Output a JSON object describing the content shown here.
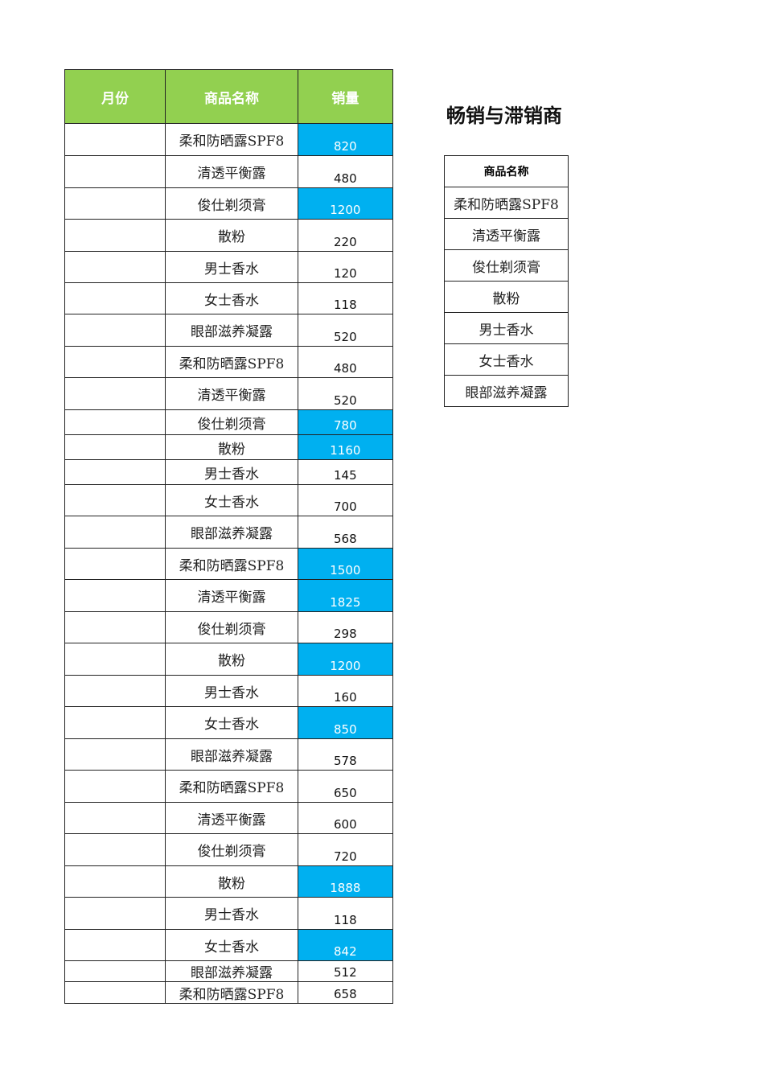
{
  "main_table": {
    "headers": [
      "月份",
      "商品名称",
      "销量"
    ],
    "rows": [
      {
        "month": "",
        "product": "柔和防晒露SPF8",
        "sales": "820",
        "highlight": true
      },
      {
        "month": "",
        "product": "清透平衡露",
        "sales": "480",
        "highlight": false
      },
      {
        "month": "",
        "product": "俊仕剃须膏",
        "sales": "1200",
        "highlight": true
      },
      {
        "month": "",
        "product": "散粉",
        "sales": "220",
        "highlight": false
      },
      {
        "month": "",
        "product": "男士香水",
        "sales": "120",
        "highlight": false
      },
      {
        "month": "",
        "product": "女士香水",
        "sales": "118",
        "highlight": false
      },
      {
        "month": "",
        "product": "眼部滋养凝露",
        "sales": "520",
        "highlight": false
      },
      {
        "month": "",
        "product": "柔和防晒露SPF8",
        "sales": "480",
        "highlight": false
      },
      {
        "month": "",
        "product": "清透平衡露",
        "sales": "520",
        "highlight": false
      },
      {
        "month": "",
        "product": "俊仕剃须膏",
        "sales": "780",
        "highlight": true
      },
      {
        "month": "",
        "product": "散粉",
        "sales": "1160",
        "highlight": true
      },
      {
        "month": "",
        "product": "男士香水",
        "sales": "145",
        "highlight": false
      },
      {
        "month": "",
        "product": "女士香水",
        "sales": "700",
        "highlight": false
      },
      {
        "month": "",
        "product": "眼部滋养凝露",
        "sales": "568",
        "highlight": false
      },
      {
        "month": "",
        "product": "柔和防晒露SPF8",
        "sales": "1500",
        "highlight": true
      },
      {
        "month": "",
        "product": "清透平衡露",
        "sales": "1825",
        "highlight": true
      },
      {
        "month": "",
        "product": "俊仕剃须膏",
        "sales": "298",
        "highlight": false
      },
      {
        "month": "",
        "product": "散粉",
        "sales": "1200",
        "highlight": true
      },
      {
        "month": "",
        "product": "男士香水",
        "sales": "160",
        "highlight": false
      },
      {
        "month": "",
        "product": "女士香水",
        "sales": "850",
        "highlight": true
      },
      {
        "month": "",
        "product": "眼部滋养凝露",
        "sales": "578",
        "highlight": false
      },
      {
        "month": "",
        "product": "柔和防晒露SPF8",
        "sales": "650",
        "highlight": false
      },
      {
        "month": "",
        "product": "清透平衡露",
        "sales": "600",
        "highlight": false
      },
      {
        "month": "",
        "product": "俊仕剃须膏",
        "sales": "720",
        "highlight": false
      },
      {
        "month": "",
        "product": "散粉",
        "sales": "1888",
        "highlight": true
      },
      {
        "month": "",
        "product": "男士香水",
        "sales": "118",
        "highlight": false
      },
      {
        "month": "",
        "product": "女士香水",
        "sales": "842",
        "highlight": true
      },
      {
        "month": "",
        "product": "眼部滋养凝露",
        "sales": "512",
        "highlight": false
      },
      {
        "month": "",
        "product": "柔和防晒露SPF8",
        "sales": "658",
        "highlight": false
      }
    ]
  },
  "side": {
    "title": "畅销与滞销商",
    "header": "商品名称",
    "items": [
      "柔和防晒露SPF8",
      "清透平衡露",
      "俊仕剃须膏",
      "散粉",
      "男士香水",
      "女士香水",
      "眼部滋养凝露"
    ]
  },
  "colors": {
    "header_bg": "#92d050",
    "highlight_bg": "#00b0f0"
  }
}
